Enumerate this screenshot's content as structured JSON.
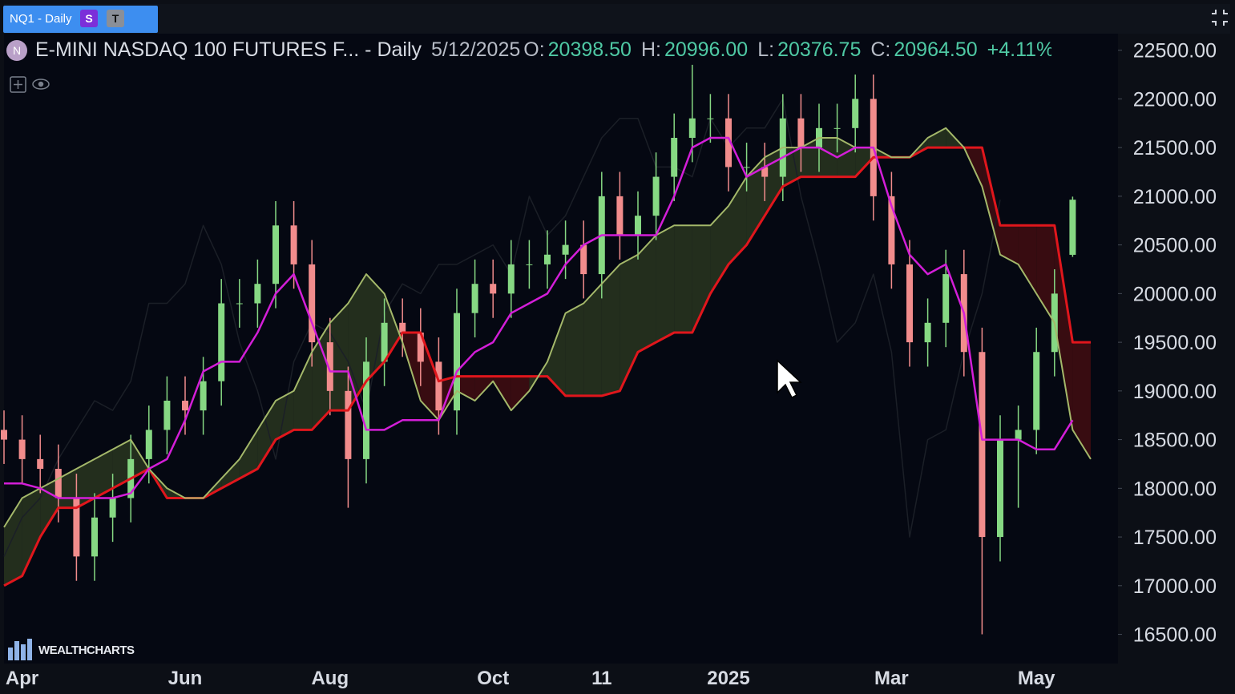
{
  "header": {
    "tab": "NQ1 - Daily",
    "badges": [
      "S",
      "T"
    ],
    "symbol_icon": "N",
    "title": "E-MINI NASDAQ 100 FUTURES F... - Daily",
    "date": "5/12/2025",
    "ohlc": [
      {
        "label": "O:",
        "value": "20398.50"
      },
      {
        "label": "H:",
        "value": "20996.00"
      },
      {
        "label": "L:",
        "value": "20376.75"
      },
      {
        "label": "C:",
        "value": "20964.50"
      }
    ],
    "change": "+4.11%"
  },
  "logo": "WEALTHCHARTS",
  "chart_data": {
    "type": "candlestick",
    "categories": [
      null,
      "Apr",
      null,
      null,
      null,
      null,
      null,
      null,
      null,
      null,
      "Jun",
      null,
      null,
      null,
      null,
      null,
      null,
      null,
      "Aug",
      null,
      null,
      null,
      null,
      null,
      null,
      null,
      null,
      "Oct",
      null,
      null,
      null,
      null,
      null,
      "11",
      null,
      null,
      null,
      null,
      null,
      null,
      "2025",
      null,
      null,
      null,
      null,
      null,
      null,
      null,
      null,
      "Mar",
      null,
      null,
      null,
      null,
      null,
      null,
      null,
      "May",
      null,
      null,
      null
    ],
    "open": [
      18600,
      18500,
      18300,
      18200,
      17900,
      17300,
      17700,
      17900,
      18300,
      18600,
      18900,
      18800,
      19100,
      19900,
      19900,
      20100,
      20700,
      20300,
      19500,
      19000,
      18300,
      19300,
      19700,
      19600,
      19300,
      18800,
      19800,
      20100,
      20000,
      20300,
      20300,
      20400,
      20500,
      20200,
      21000,
      20600,
      20800,
      21200,
      21600,
      21800,
      21800,
      21300,
      21300,
      21200,
      21800,
      21500,
      21700,
      21700,
      22000,
      21000,
      20300,
      19500,
      19700,
      20200,
      19400,
      17500,
      18500,
      18600,
      19400,
      20398.5,
      null
    ],
    "high": [
      18800,
      18750,
      18550,
      18450,
      18150,
      17950,
      18150,
      18550,
      18850,
      19150,
      19150,
      19350,
      20150,
      20150,
      20350,
      20950,
      20950,
      20550,
      19750,
      19250,
      19550,
      19950,
      19950,
      19850,
      19550,
      20050,
      20350,
      20350,
      20550,
      20550,
      20650,
      20750,
      20750,
      21250,
      21250,
      21050,
      21450,
      21850,
      22350,
      22050,
      22050,
      21550,
      21550,
      22050,
      22050,
      21950,
      21950,
      22250,
      22250,
      21250,
      20550,
      19950,
      20450,
      20450,
      19650,
      18750,
      18850,
      19650,
      20250,
      20996,
      null
    ],
    "low": [
      18250,
      18050,
      17950,
      17650,
      17050,
      17050,
      17450,
      17650,
      18050,
      18350,
      18550,
      18550,
      18850,
      19650,
      19650,
      19850,
      20050,
      19250,
      18750,
      17800,
      18050,
      19050,
      19350,
      19050,
      18550,
      18550,
      19550,
      19750,
      19750,
      20050,
      20050,
      20150,
      19950,
      19950,
      20350,
      20350,
      20550,
      20950,
      21350,
      21550,
      21050,
      21050,
      20950,
      20950,
      21250,
      21250,
      21450,
      21450,
      20750,
      20050,
      19250,
      19250,
      19450,
      19150,
      16500,
      17250,
      17800,
      18350,
      19150,
      20376.75,
      null
    ],
    "close": [
      18500,
      18300,
      18200,
      17900,
      17300,
      17700,
      17900,
      18300,
      18600,
      18900,
      18800,
      19100,
      19900,
      19900,
      20100,
      20700,
      20300,
      19500,
      19000,
      18300,
      19300,
      19700,
      19600,
      19300,
      18800,
      19800,
      20100,
      20000,
      20300,
      20300,
      20400,
      20500,
      20200,
      21000,
      20600,
      20800,
      21200,
      21600,
      21800,
      21800,
      21300,
      21300,
      21200,
      21800,
      21500,
      21700,
      21700,
      22000,
      21000,
      20300,
      19500,
      19700,
      20200,
      19400,
      17500,
      18500,
      18600,
      19400,
      20000,
      20964.5,
      null
    ],
    "up_color": "#86d883",
    "down_color": "#f18c8c",
    "lines": [
      {
        "color": "#1b1f27",
        "width": 1.5,
        "values": [
          17300,
          17700,
          17900,
          18300,
          18600,
          18900,
          18800,
          19100,
          19900,
          19900,
          20100,
          20700,
          20300,
          19500,
          19000,
          18300,
          19300,
          19700,
          19600,
          19300,
          18800,
          19800,
          20100,
          20000,
          20300,
          20300,
          20400,
          20500,
          20200,
          21000,
          20600,
          20800,
          21200,
          21600,
          21800,
          21800,
          21300,
          21300,
          21200,
          21800,
          21500,
          21700,
          21700,
          22000,
          21000,
          20300,
          19500,
          19700,
          20200,
          19400,
          17500,
          18500,
          18600,
          19400,
          20000,
          20964.5,
          null,
          null,
          null,
          null,
          null
        ]
      },
      {
        "color": "#e0161c",
        "width": 3,
        "values": [
          17000,
          17100,
          17500,
          17800,
          17800,
          17900,
          18000,
          18100,
          18200,
          17900,
          17900,
          17900,
          18000,
          18100,
          18200,
          18500,
          18600,
          18600,
          18800,
          18800,
          19100,
          19300,
          19600,
          19600,
          19100,
          19150,
          19150,
          19150,
          19150,
          19150,
          19150,
          18950,
          18950,
          18950,
          19000,
          19400,
          19500,
          19600,
          19600,
          20000,
          20300,
          20500,
          20800,
          21100,
          21200,
          21200,
          21200,
          21200,
          21400,
          21400,
          21400,
          21500,
          21500,
          21500,
          21500,
          20700,
          20700,
          20700,
          20700,
          19500,
          19500
        ]
      },
      {
        "color": "#a4b86a",
        "width": 2,
        "values": [
          17600,
          17900,
          18000,
          18100,
          18200,
          18300,
          18400,
          18500,
          18200,
          18000,
          17900,
          17900,
          18100,
          18300,
          18600,
          18900,
          19000,
          19400,
          19700,
          19900,
          20200,
          20000,
          19500,
          18900,
          18700,
          19000,
          18900,
          19100,
          18800,
          19000,
          19300,
          19800,
          19900,
          20100,
          20300,
          20400,
          20600,
          20700,
          20700,
          20700,
          20900,
          21200,
          21400,
          21500,
          21500,
          21600,
          21600,
          21500,
          21500,
          21400,
          21400,
          21600,
          21700,
          21500,
          21100,
          20400,
          20300,
          20000,
          19700,
          18600,
          18300
        ]
      },
      {
        "color": "#d31ed8",
        "width": 2.5,
        "values": [
          18050,
          18050,
          18000,
          17900,
          17900,
          17900,
          17900,
          17950,
          18200,
          18300,
          18700,
          19200,
          19300,
          19300,
          19600,
          20000,
          20200,
          19700,
          19200,
          19200,
          18600,
          18600,
          18700,
          18700,
          18700,
          19200,
          19400,
          19500,
          19800,
          19900,
          20000,
          20300,
          20500,
          20600,
          20600,
          20600,
          20600,
          21000,
          21500,
          21600,
          21600,
          21200,
          21300,
          21400,
          21500,
          21500,
          21400,
          21500,
          21500,
          20900,
          20400,
          20200,
          20300,
          19800,
          18500,
          18500,
          18500,
          18400,
          18400,
          18700,
          null
        ]
      }
    ],
    "cloud_colors": {
      "up": "#27331f",
      "down": "#3e0d12"
    },
    "ylim": [
      16200,
      22670
    ],
    "yticks": [
      {
        "value": 16500,
        "label": "16500.00"
      },
      {
        "value": 17000,
        "label": "17000.00"
      },
      {
        "value": 17500,
        "label": "17500.00"
      },
      {
        "value": 18000,
        "label": "18000.00"
      },
      {
        "value": 18500,
        "label": "18500.00"
      },
      {
        "value": 19000,
        "label": "19000.00"
      },
      {
        "value": 19500,
        "label": "19500.00"
      },
      {
        "value": 20000,
        "label": "20000.00"
      },
      {
        "value": 20500,
        "label": "20500.00"
      },
      {
        "value": 21000,
        "label": "21000.00"
      },
      {
        "value": 21500,
        "label": "21500.00"
      },
      {
        "value": 22000,
        "label": "22000.00"
      },
      {
        "value": 22500,
        "label": "22500.00"
      }
    ]
  }
}
